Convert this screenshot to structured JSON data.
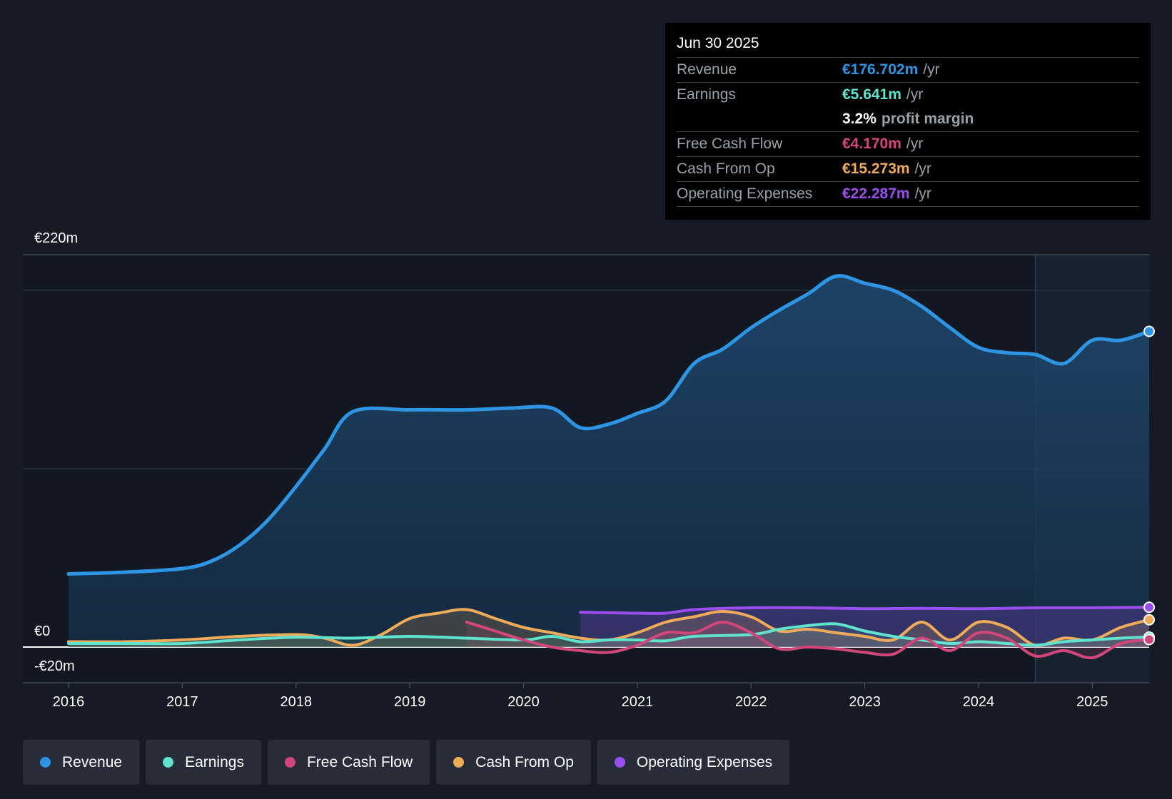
{
  "colors": {
    "revenue": "#2d95e3",
    "earnings": "#5fe3cf",
    "fcf": "#d1477b",
    "cfo": "#eeac5a",
    "opex": "#9b4ef0"
  },
  "tooltip": {
    "date": "Jun 30 2025",
    "rows": [
      {
        "label": "Revenue",
        "value": "€176.702m",
        "unit": "/yr",
        "color": "#2d95e3"
      },
      {
        "label": "Earnings",
        "value": "€5.641m",
        "unit": "/yr",
        "color": "#5fe3cf"
      },
      {
        "label": "",
        "value": "3.2%",
        "unit": "profit margin",
        "color": "#ffffff"
      },
      {
        "label": "Free Cash Flow",
        "value": "€4.170m",
        "unit": "/yr",
        "color": "#d1477b"
      },
      {
        "label": "Cash From Op",
        "value": "€15.273m",
        "unit": "/yr",
        "color": "#eeac5a"
      },
      {
        "label": "Operating Expenses",
        "value": "€22.287m",
        "unit": "/yr",
        "color": "#9b4ef0"
      }
    ]
  },
  "legend": [
    {
      "label": "Revenue",
      "color": "#2d95e3"
    },
    {
      "label": "Earnings",
      "color": "#5fe3cf"
    },
    {
      "label": "Free Cash Flow",
      "color": "#d1477b"
    },
    {
      "label": "Cash From Op",
      "color": "#eeac5a"
    },
    {
      "label": "Operating Expenses",
      "color": "#9b4ef0"
    }
  ],
  "chart_data": {
    "type": "area",
    "x_label": "",
    "y_label": "",
    "y_tick_labels": [
      "€220m",
      "€0",
      "-€20m"
    ],
    "y_range": [
      -20,
      220
    ],
    "x_range": [
      2016,
      2025.5
    ],
    "x_ticks": [
      "2016",
      "2017",
      "2018",
      "2019",
      "2020",
      "2021",
      "2022",
      "2023",
      "2024",
      "2025"
    ],
    "grid": true,
    "forecast_shade_start": 2024.5,
    "series": [
      {
        "name": "Revenue",
        "key": "revenue",
        "points": [
          [
            2016,
            41
          ],
          [
            2016.5,
            42
          ],
          [
            2017,
            44
          ],
          [
            2017.25,
            48
          ],
          [
            2017.5,
            57
          ],
          [
            2017.75,
            71
          ],
          [
            2018,
            90
          ],
          [
            2018.25,
            111
          ],
          [
            2018.5,
            132
          ],
          [
            2019,
            133
          ],
          [
            2019.5,
            133
          ],
          [
            2019.9,
            134
          ],
          [
            2020.25,
            134
          ],
          [
            2020.5,
            123
          ],
          [
            2020.75,
            125
          ],
          [
            2021,
            131
          ],
          [
            2021.25,
            138
          ],
          [
            2021.5,
            159
          ],
          [
            2021.75,
            167
          ],
          [
            2022,
            179
          ],
          [
            2022.25,
            189
          ],
          [
            2022.5,
            198
          ],
          [
            2022.75,
            208
          ],
          [
            2023,
            204
          ],
          [
            2023.25,
            200
          ],
          [
            2023.5,
            191
          ],
          [
            2023.75,
            179
          ],
          [
            2024,
            168
          ],
          [
            2024.25,
            165
          ],
          [
            2024.5,
            164
          ],
          [
            2024.75,
            159
          ],
          [
            2025,
            172
          ],
          [
            2025.25,
            172
          ],
          [
            2025.5,
            177
          ]
        ]
      },
      {
        "name": "Earnings",
        "key": "earnings",
        "points": [
          [
            2016,
            2
          ],
          [
            2016.5,
            2
          ],
          [
            2017,
            2
          ],
          [
            2017.5,
            4
          ],
          [
            2018,
            5.5
          ],
          [
            2018.5,
            5
          ],
          [
            2019,
            6
          ],
          [
            2019.5,
            5
          ],
          [
            2020,
            4
          ],
          [
            2020.25,
            6
          ],
          [
            2020.5,
            3
          ],
          [
            2020.75,
            4
          ],
          [
            2021,
            4
          ],
          [
            2021.25,
            3.5
          ],
          [
            2021.5,
            6
          ],
          [
            2022,
            7
          ],
          [
            2022.25,
            10
          ],
          [
            2022.5,
            12
          ],
          [
            2022.75,
            13
          ],
          [
            2023,
            9
          ],
          [
            2023.25,
            6
          ],
          [
            2023.5,
            4
          ],
          [
            2023.75,
            2
          ],
          [
            2024,
            3
          ],
          [
            2024.25,
            2
          ],
          [
            2024.5,
            1
          ],
          [
            2024.75,
            3
          ],
          [
            2025,
            4
          ],
          [
            2025.25,
            5
          ],
          [
            2025.5,
            5.6
          ]
        ]
      },
      {
        "name": "Free Cash Flow",
        "key": "fcf",
        "points": [
          [
            2019.5,
            14
          ],
          [
            2019.75,
            9
          ],
          [
            2020,
            4
          ],
          [
            2020.25,
            0
          ],
          [
            2020.5,
            -2
          ],
          [
            2020.75,
            -3
          ],
          [
            2021,
            1
          ],
          [
            2021.25,
            8
          ],
          [
            2021.5,
            8
          ],
          [
            2021.75,
            14
          ],
          [
            2022,
            8
          ],
          [
            2022.25,
            -1
          ],
          [
            2022.5,
            0
          ],
          [
            2022.75,
            -1
          ],
          [
            2023,
            -3
          ],
          [
            2023.25,
            -4
          ],
          [
            2023.5,
            5
          ],
          [
            2023.75,
            -2
          ],
          [
            2024,
            8
          ],
          [
            2024.25,
            5
          ],
          [
            2024.5,
            -5
          ],
          [
            2024.75,
            -2
          ],
          [
            2025,
            -6
          ],
          [
            2025.25,
            2
          ],
          [
            2025.5,
            4.2
          ]
        ]
      },
      {
        "name": "Cash From Op",
        "key": "cfo",
        "points": [
          [
            2016,
            3
          ],
          [
            2016.5,
            3
          ],
          [
            2017,
            4
          ],
          [
            2017.5,
            6
          ],
          [
            2018,
            7
          ],
          [
            2018.25,
            5
          ],
          [
            2018.5,
            1
          ],
          [
            2018.75,
            7
          ],
          [
            2019,
            16
          ],
          [
            2019.25,
            19
          ],
          [
            2019.5,
            21
          ],
          [
            2019.75,
            16
          ],
          [
            2020,
            11
          ],
          [
            2020.25,
            8
          ],
          [
            2020.5,
            5
          ],
          [
            2020.75,
            4
          ],
          [
            2021,
            8
          ],
          [
            2021.25,
            14
          ],
          [
            2021.5,
            17
          ],
          [
            2021.75,
            20
          ],
          [
            2022,
            17
          ],
          [
            2022.25,
            9
          ],
          [
            2022.5,
            10
          ],
          [
            2022.75,
            8
          ],
          [
            2023,
            6
          ],
          [
            2023.25,
            4
          ],
          [
            2023.5,
            14
          ],
          [
            2023.75,
            4
          ],
          [
            2024,
            14
          ],
          [
            2024.25,
            11
          ],
          [
            2024.5,
            1
          ],
          [
            2024.75,
            5
          ],
          [
            2025,
            4
          ],
          [
            2025.25,
            11
          ],
          [
            2025.5,
            15.3
          ]
        ]
      },
      {
        "name": "Operating Expenses",
        "key": "opex",
        "points": [
          [
            2020.5,
            19.5
          ],
          [
            2021,
            19
          ],
          [
            2021.25,
            19
          ],
          [
            2021.5,
            21
          ],
          [
            2022,
            22
          ],
          [
            2022.5,
            22
          ],
          [
            2023,
            21.5
          ],
          [
            2023.5,
            21.7
          ],
          [
            2024,
            21.5
          ],
          [
            2024.5,
            22
          ],
          [
            2025,
            22
          ],
          [
            2025.5,
            22.3
          ]
        ]
      }
    ]
  }
}
